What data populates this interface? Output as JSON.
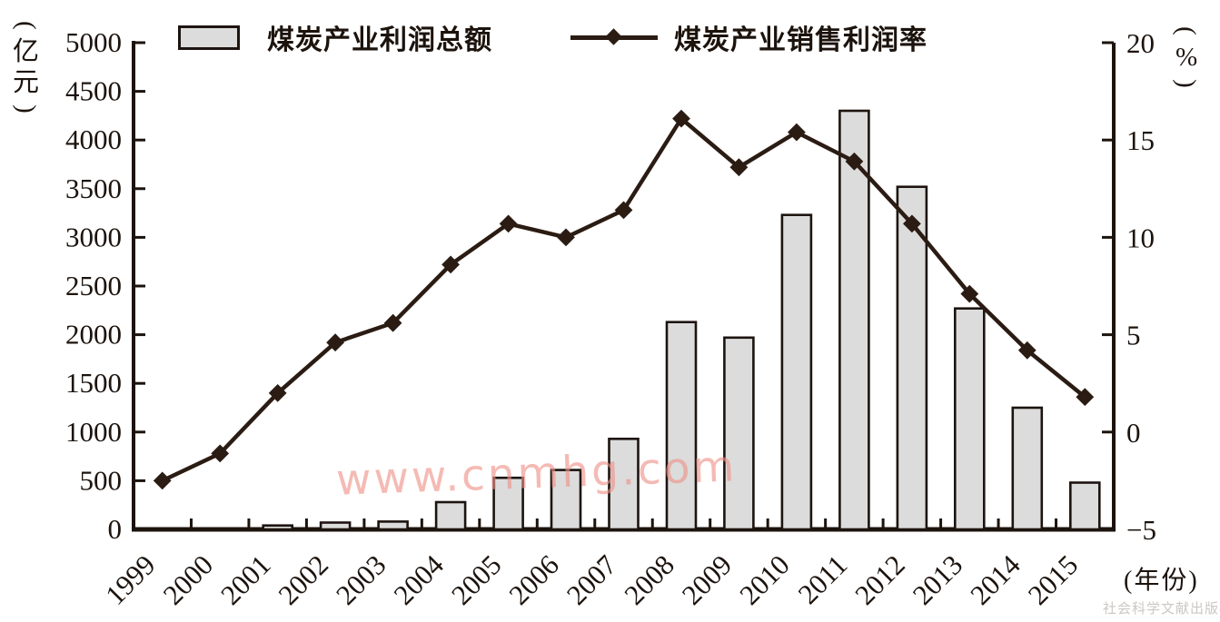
{
  "legend": {
    "bar_label": "煤炭产业利润总额",
    "line_label": "煤炭产业销售利润率"
  },
  "x_axis": {
    "label": "(年份)"
  },
  "watermark": {
    "text": "www.cnmhg.com",
    "publisher": "社会科学文献出版社"
  },
  "colors": {
    "background": "#ffffff",
    "bar_fill": "#dcdcdc",
    "bar_stroke": "#1d1410",
    "line": "#2b1c13",
    "text": "#1c130d",
    "watermark": "#ef9187",
    "publisher": "#cbc7c3"
  },
  "chart_data": {
    "type": "combo: bar + line, dual axis",
    "title": "",
    "grid": false,
    "legend_position": "top",
    "categories": [
      "1999",
      "2000",
      "2001",
      "2002",
      "2003",
      "2004",
      "2005",
      "2006",
      "2007",
      "2008",
      "2009",
      "2010",
      "2011",
      "2012",
      "2013",
      "2014",
      "2015"
    ],
    "series": [
      {
        "name": "煤炭产业利润总额",
        "type": "bar",
        "axis": "left",
        "unit": "亿元",
        "values": [
          0,
          0,
          40,
          70,
          80,
          280,
          530,
          610,
          930,
          2130,
          1970,
          3230,
          4300,
          3520,
          2270,
          1250,
          480
        ]
      },
      {
        "name": "煤炭产业销售利润率",
        "type": "line",
        "marker": "diamond",
        "axis": "right",
        "unit": "%",
        "values": [
          -2.5,
          -1.1,
          2.0,
          4.6,
          5.6,
          8.6,
          10.7,
          10.0,
          11.4,
          16.1,
          13.6,
          15.4,
          13.9,
          10.7,
          7.1,
          4.2,
          1.8
        ]
      }
    ],
    "left_axis": {
      "label": "(亿元)",
      "min": 0,
      "max": 5000,
      "step": 500,
      "ticks": [
        "0",
        "500",
        "1000",
        "1500",
        "2000",
        "2500",
        "3000",
        "3500",
        "4000",
        "4500",
        "5000"
      ]
    },
    "right_axis": {
      "label": "(%)",
      "min": -5,
      "max": 20,
      "step": 5,
      "ticks": [
        "−5",
        "0",
        "5",
        "10",
        "15",
        "20"
      ]
    },
    "x_label": "(年份)"
  }
}
